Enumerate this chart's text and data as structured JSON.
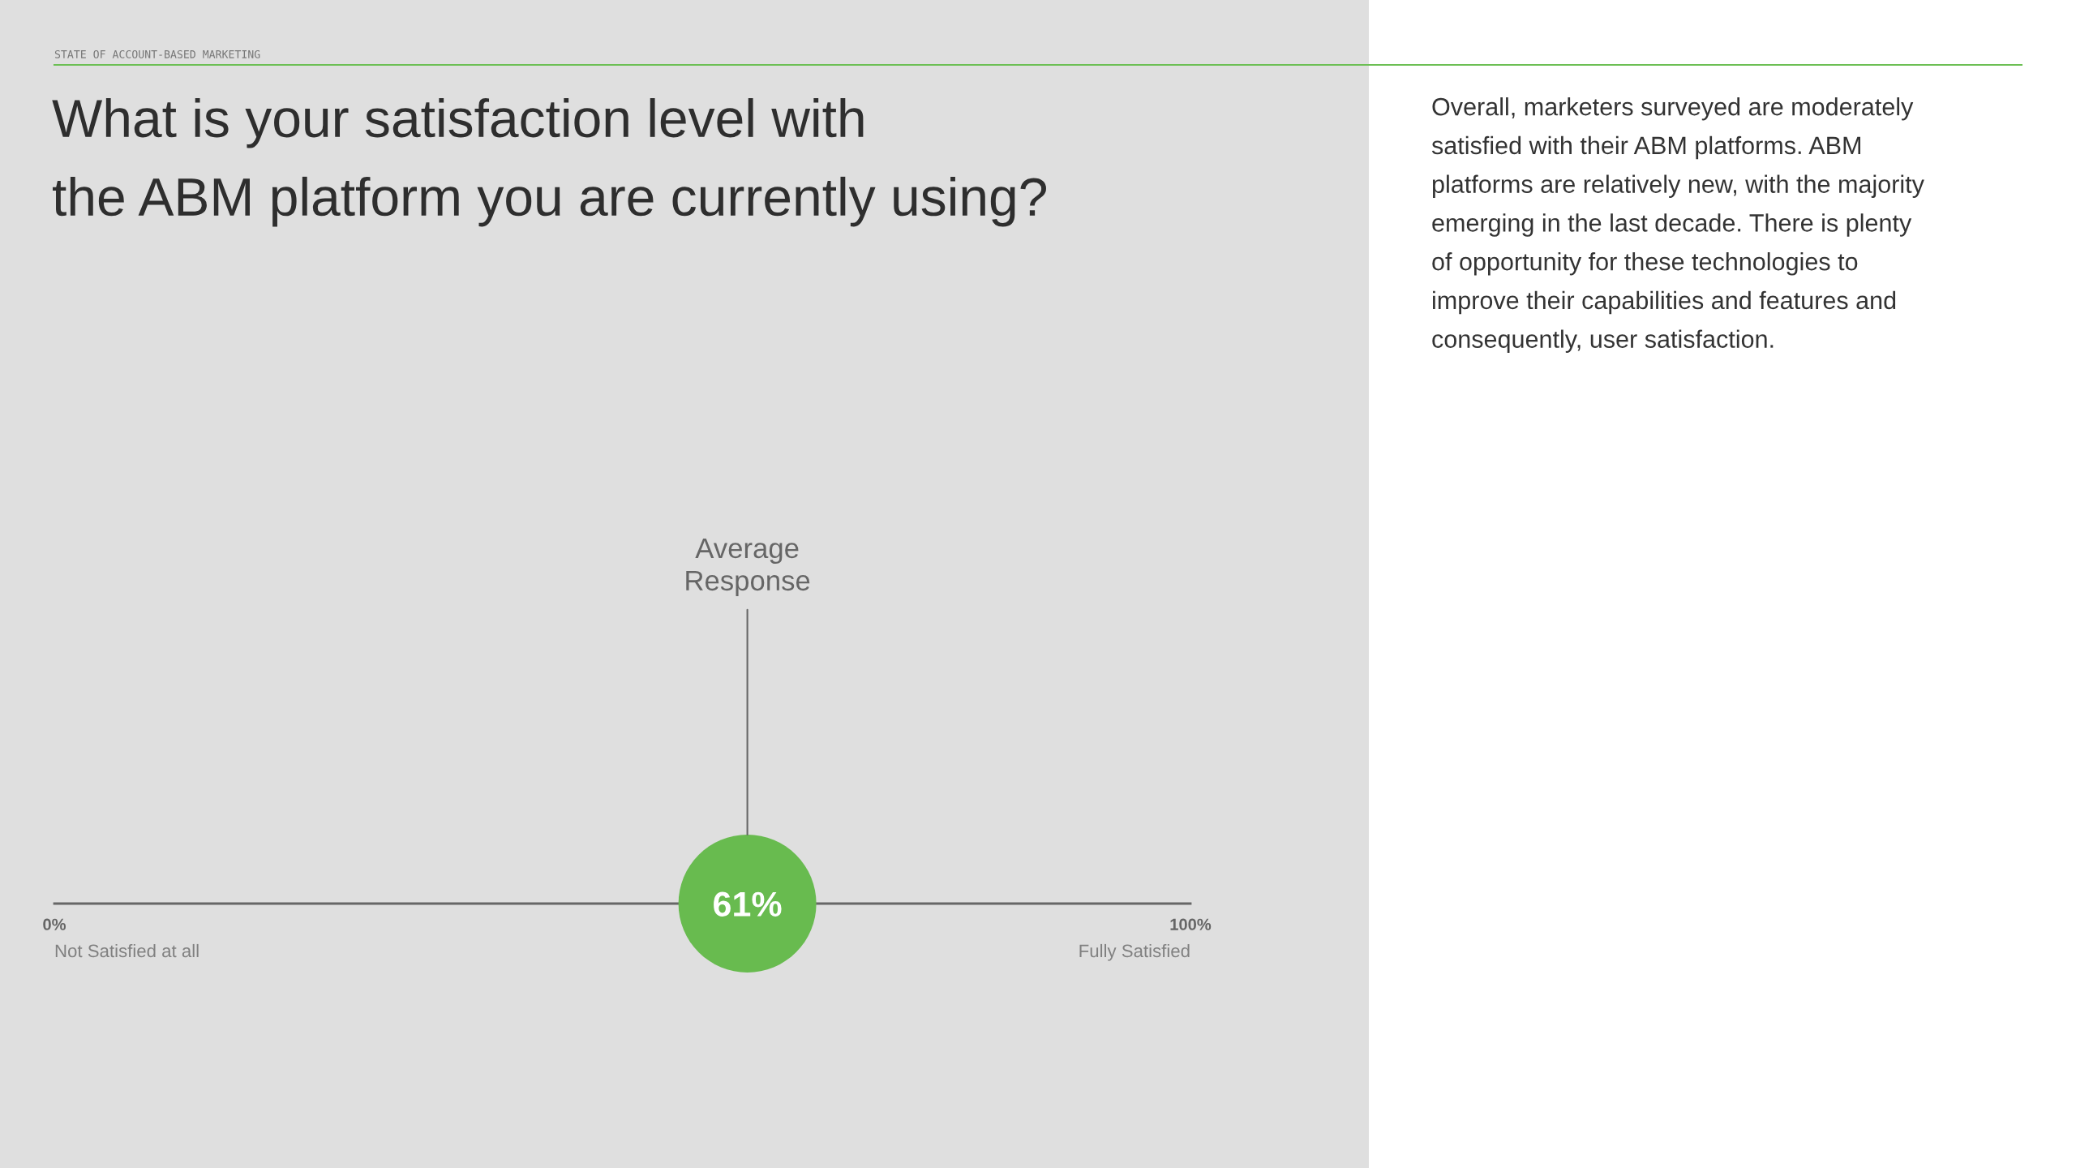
{
  "chart_data": {
    "type": "scatter",
    "orientation": "horizontal",
    "subtitle": "STATE OF ACCOUNT-BASED MARKETING",
    "title": "What is your satisfaction level with\nthe ABM platform you are currently using?",
    "categories": [
      null
    ],
    "values": [
      61
    ],
    "value_labels": [
      "61%"
    ],
    "color": "#68bb4f",
    "xlim": [
      0,
      100
    ],
    "xticks": [
      {
        "value": 0,
        "label": "0%"
      },
      {
        "value": 100,
        "label": "100%"
      }
    ],
    "tick_labels": "x",
    "annotations": [
      "Overall, marketers surveyed are moderately\nsatisfied with their ABM platforms. ABM\nplatforms are relatively new, with the majority\nemerging in the last decade. There is plenty\nof opportunity for these technologies to\nimprove their capabilities and features and\nconsequently, user satisfaction.",
      {
        "text": "Average\nResponse",
        "x": 61
      },
      "Not Satisfied at all",
      "Fully Satisfied"
    ]
  }
}
